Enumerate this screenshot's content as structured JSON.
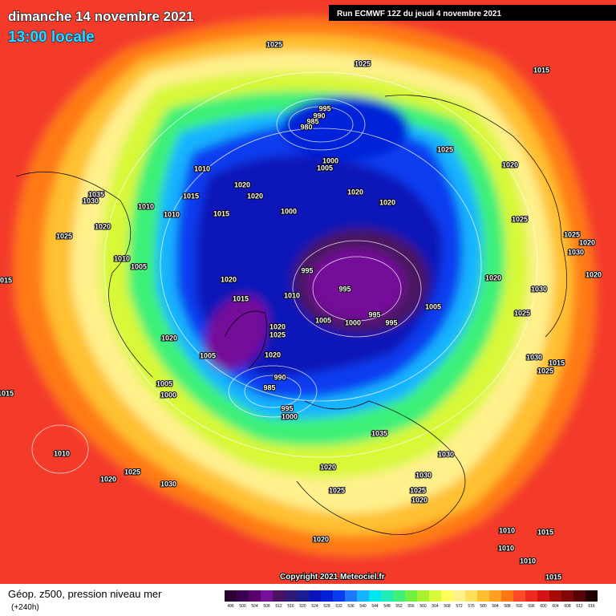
{
  "header": {
    "date": "dimanche 14 novembre 2021",
    "time": "13:00 locale",
    "run": "Run ECMWF 12Z du jeudi 4 novembre 2021"
  },
  "isobar_labels": [
    "1025",
    "1025",
    "1015",
    "995",
    "990",
    "985",
    "980",
    "1025",
    "1005",
    "1000",
    "1010",
    "1020",
    "1020",
    "1020",
    "1020",
    "1020",
    "1035",
    "1030",
    "1015",
    "1010",
    "1010",
    "1015",
    "1000",
    "1025",
    "1020",
    "1025",
    "1025",
    "1020",
    "1030",
    "1010",
    "1005",
    "995",
    "1020",
    "1020",
    "1020",
    "1015",
    "995",
    "1030",
    "1015",
    "1010",
    "1005",
    "1025",
    "995",
    "1005",
    "1000",
    "995",
    "1020",
    "1025",
    "1020",
    "1020",
    "1005",
    "1030",
    "1015",
    "1025",
    "990",
    "985",
    "1005",
    "1015",
    "1000",
    "995",
    "1000",
    "1035",
    "1030",
    "1010",
    "1020",
    "1025",
    "1030",
    "1020",
    "1030",
    "1025",
    "1025",
    "1020",
    "1010",
    "1015",
    "1020",
    "1010",
    "1010",
    "1015"
  ],
  "copyright": "Copyright 2021 Meteociel.fr",
  "footer": {
    "title": "Géop. z500, pression niveau mer",
    "lead": "(+240h)"
  },
  "legend": {
    "items": [
      {
        "label": "496",
        "color": "#2a0030"
      },
      {
        "label": "500",
        "color": "#3c0050"
      },
      {
        "label": "504",
        "color": "#58006e"
      },
      {
        "label": "508",
        "color": "#74109a"
      },
      {
        "label": "512",
        "color": "#4a1260"
      },
      {
        "label": "516",
        "color": "#301a78"
      },
      {
        "label": "520",
        "color": "#1a1e90"
      },
      {
        "label": "524",
        "color": "#0a14b8"
      },
      {
        "label": "528",
        "color": "#0020d8"
      },
      {
        "label": "532",
        "color": "#0a3cf0"
      },
      {
        "label": "536",
        "color": "#1e78ff"
      },
      {
        "label": "540",
        "color": "#14b4ff"
      },
      {
        "label": "544",
        "color": "#00e6f0"
      },
      {
        "label": "548",
        "color": "#20ecb8"
      },
      {
        "label": "552",
        "color": "#3cf078"
      },
      {
        "label": "556",
        "color": "#70f040"
      },
      {
        "label": "560",
        "color": "#a8f030"
      },
      {
        "label": "564",
        "color": "#d8f838"
      },
      {
        "label": "568",
        "color": "#ffff5a"
      },
      {
        "label": "572",
        "color": "#fff08c"
      },
      {
        "label": "576",
        "color": "#ffe05a"
      },
      {
        "label": "580",
        "color": "#ffc030"
      },
      {
        "label": "584",
        "color": "#ffa020"
      },
      {
        "label": "588",
        "color": "#ff7814"
      },
      {
        "label": "592",
        "color": "#ff4a28"
      },
      {
        "label": "596",
        "color": "#f0281e"
      },
      {
        "label": "600",
        "color": "#d21414"
      },
      {
        "label": "604",
        "color": "#a80a0a"
      },
      {
        "label": "608",
        "color": "#800808"
      },
      {
        "label": "612",
        "color": "#580404"
      },
      {
        "label": "616",
        "color": "#200000"
      }
    ]
  }
}
